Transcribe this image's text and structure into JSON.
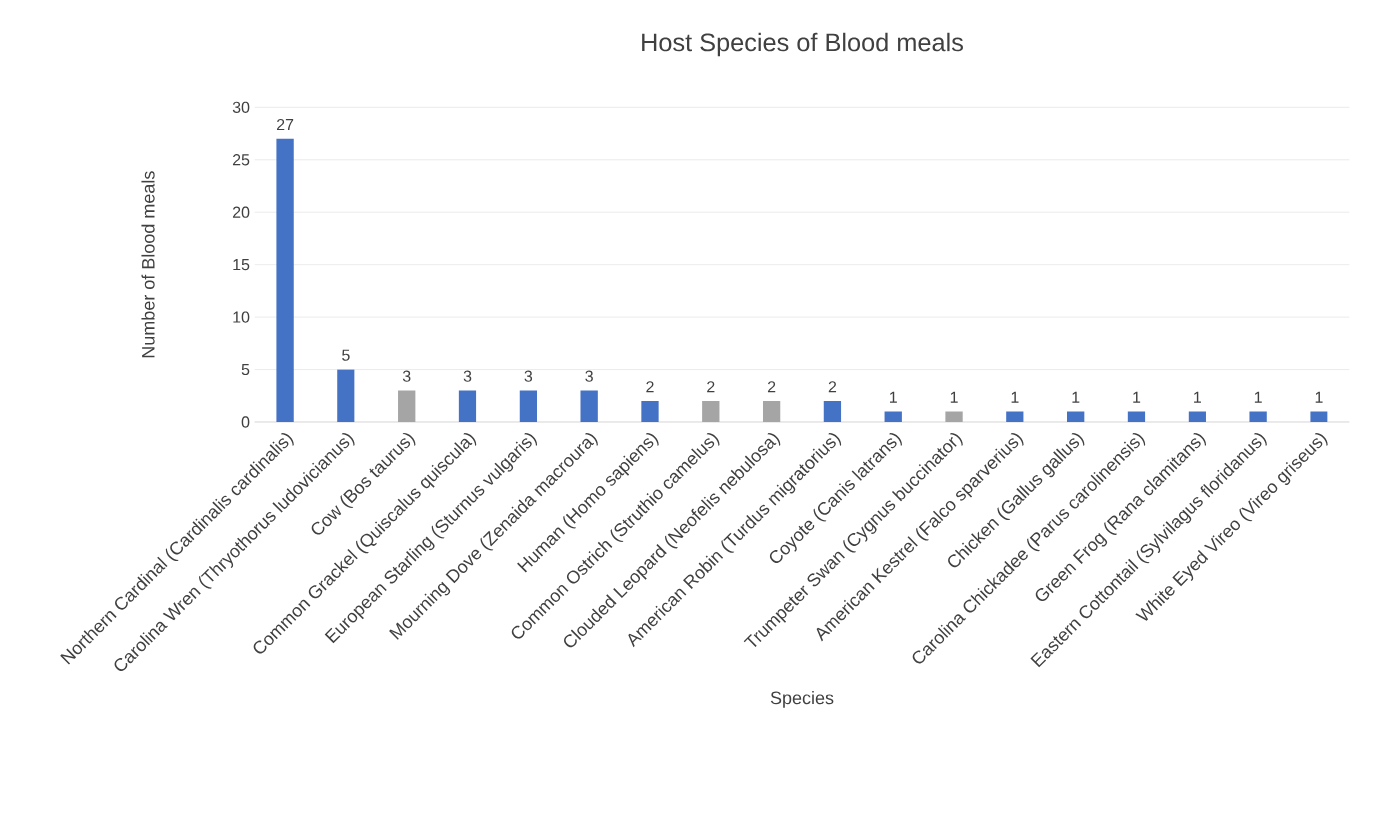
{
  "chart_data": {
    "type": "bar",
    "title": "Host Species of Blood meals",
    "xlabel": "Species",
    "ylabel": "Number of Blood meals",
    "categories": [
      "Northern Cardinal (Cardinalis cardinalis)",
      "Carolina Wren (Thryothorus ludovicianus)",
      "Cow (Bos taurus)",
      "Common Grackel (Quiscalus quiscula)",
      "European Starling (Sturnus vulgaris)",
      "Mourning Dove (Zenaida macroura)",
      "Human (Homo sapiens)",
      "Common Ostrich (Struthio camelus)",
      "Clouded Leopard (Neofelis nebulosa)",
      "American Robin (Turdus migratorius)",
      "Coyote (Canis latrans)",
      "Trumpeter Swan (Cygnus buccinator)",
      "American Kestrel (Falco sparverius)",
      "Chicken (Gallus gallus)",
      "Carolina Chickadee (Parus carolinensis)",
      "Green Frog (Rana clamitans)",
      "Eastern Cottontail (Sylvilagus floridanus)",
      "White Eyed Vireo (Vireo griseus)"
    ],
    "values": [
      27,
      5,
      3,
      3,
      3,
      3,
      2,
      2,
      2,
      2,
      1,
      1,
      1,
      1,
      1,
      1,
      1,
      1
    ],
    "colors": [
      "#4472c4",
      "#4472c4",
      "#a5a5a5",
      "#4472c4",
      "#4472c4",
      "#4472c4",
      "#4472c4",
      "#a5a5a5",
      "#a5a5a5",
      "#4472c4",
      "#4472c4",
      "#a5a5a5",
      "#4472c4",
      "#4472c4",
      "#4472c4",
      "#4472c4",
      "#4472c4",
      "#4472c4"
    ],
    "ylim": [
      0,
      30
    ],
    "yticks": [
      0,
      5,
      10,
      15,
      20,
      25,
      30
    ],
    "grid": "y",
    "data_labels": true
  }
}
